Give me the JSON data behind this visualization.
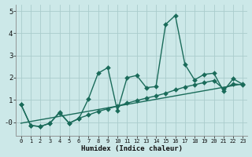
{
  "xlabel": "Humidex (Indice chaleur)",
  "background_color": "#cce8e8",
  "grid_color": "#aacccc",
  "line_color": "#1a6b5a",
  "xlim": [
    -0.5,
    23.5
  ],
  "ylim": [
    -0.6,
    5.3
  ],
  "yticks": [
    0,
    1,
    2,
    3,
    4,
    5
  ],
  "ytick_labels": [
    "-0",
    "1",
    "2",
    "3",
    "4",
    "5"
  ],
  "xticks": [
    0,
    1,
    2,
    3,
    4,
    5,
    6,
    7,
    8,
    9,
    10,
    11,
    12,
    13,
    14,
    15,
    16,
    17,
    18,
    19,
    20,
    21,
    22,
    23
  ],
  "series1_x": [
    0,
    1,
    2,
    3,
    4,
    5,
    6,
    7,
    8,
    9,
    10,
    11,
    12,
    13,
    14,
    15,
    16,
    17,
    18,
    19,
    20,
    21,
    22,
    23
  ],
  "series1_y": [
    0.8,
    -0.15,
    -0.2,
    -0.05,
    0.45,
    -0.05,
    0.15,
    1.05,
    2.2,
    2.45,
    0.5,
    2.0,
    2.1,
    1.55,
    1.6,
    4.4,
    4.8,
    2.6,
    1.9,
    2.15,
    2.2,
    1.4,
    1.95,
    1.7
  ],
  "series2_x": [
    0,
    1,
    2,
    3,
    4,
    5,
    6,
    7,
    8,
    9,
    10,
    11,
    12,
    13,
    14,
    15,
    16,
    17,
    18,
    19,
    20,
    21,
    22,
    23
  ],
  "series2_y": [
    0.8,
    -0.15,
    -0.2,
    -0.05,
    0.42,
    -0.05,
    0.17,
    0.32,
    0.48,
    0.6,
    0.72,
    0.85,
    0.97,
    1.08,
    1.18,
    1.3,
    1.45,
    1.58,
    1.68,
    1.78,
    1.87,
    1.5,
    1.72,
    1.68
  ],
  "series3_x": [
    0,
    23
  ],
  "series3_y": [
    -0.05,
    1.72
  ],
  "markersize": 3.0,
  "linewidth": 1.0
}
